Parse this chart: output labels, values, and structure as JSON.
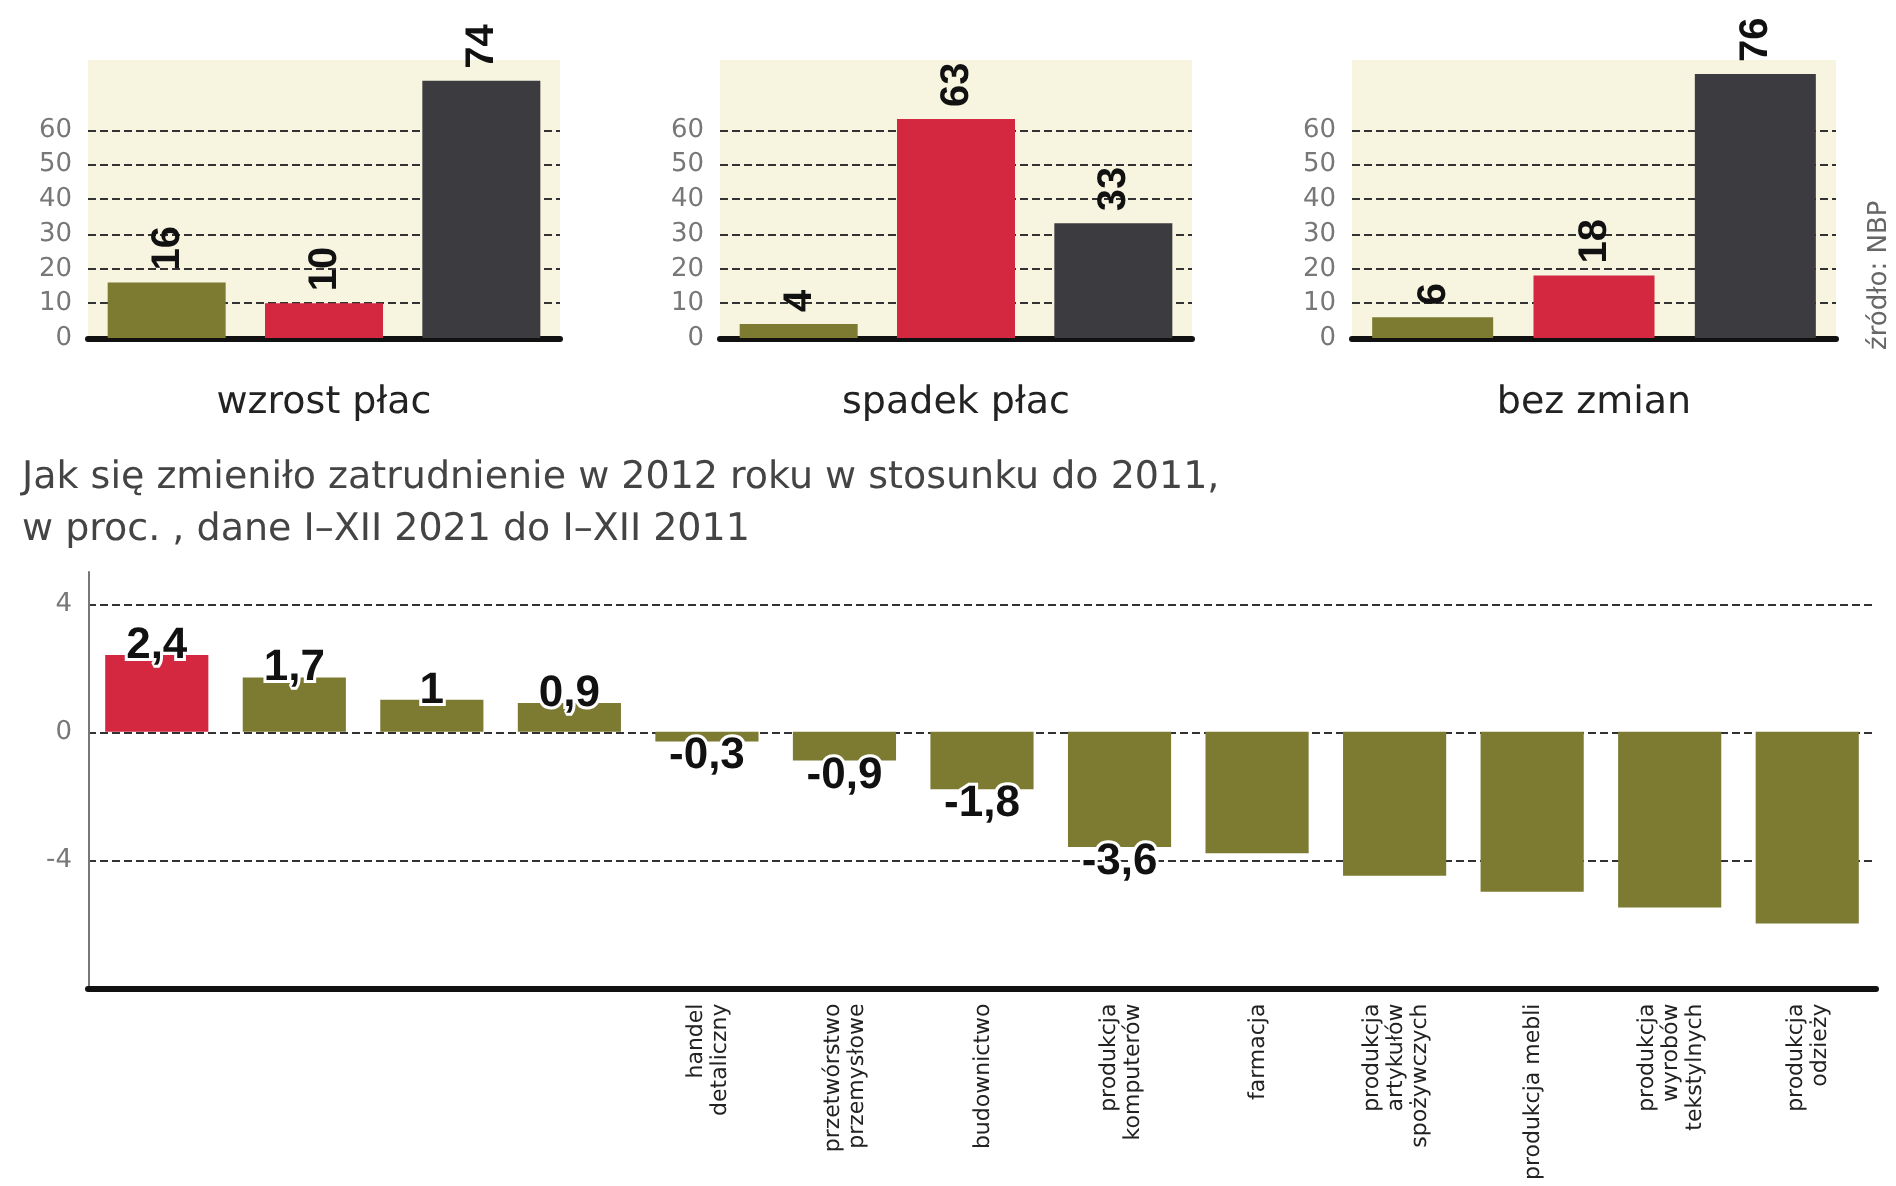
{
  "chart_data": [
    {
      "type": "bar",
      "xlabel": "wzrost płac",
      "categories": [
        null,
        null,
        null
      ],
      "values": [
        16,
        10,
        74
      ],
      "colors": [
        "#7d7b32",
        "#d3283f",
        "#3b3b40"
      ],
      "ylim": [
        0,
        80
      ],
      "yticks": [
        0,
        10,
        20,
        30,
        40,
        50,
        60
      ],
      "grid": "y",
      "data_labels": true
    },
    {
      "type": "bar",
      "xlabel": "spadek płac",
      "categories": [
        null,
        null,
        null
      ],
      "values": [
        4,
        63,
        33
      ],
      "colors": [
        "#7d7b32",
        "#d3283f",
        "#3b3b40"
      ],
      "ylim": [
        0,
        80
      ],
      "yticks": [
        0,
        10,
        20,
        30,
        40,
        50,
        60
      ],
      "grid": "y",
      "data_labels": true
    },
    {
      "type": "bar",
      "xlabel": "bez zmian",
      "categories": [
        null,
        null,
        null
      ],
      "values": [
        6,
        18,
        76
      ],
      "colors": [
        "#7d7b32",
        "#d3283f",
        "#3b3b40"
      ],
      "ylim": [
        0,
        80
      ],
      "yticks": [
        0,
        10,
        20,
        30,
        40,
        50,
        60
      ],
      "grid": "y",
      "data_labels": true,
      "annotations": [
        "źródło: NBP"
      ]
    },
    {
      "type": "bar",
      "title": "Jak się zmieniło zatrudnienie w 2012 roku w stosunku do 2011,\nw proc. , dane I–XII 2021 do I–XII 2011",
      "categories": [
        null,
        null,
        null,
        null,
        "handel\ndetaliczny",
        "przetwórstwo\nprzemysłowe",
        "budownictwo",
        "produkcja\nkomputerów",
        "farmacja",
        "produkcja\nartykułów\nspożywczych",
        "produkcja mebli",
        "produkcja\nwyrobów\ntekstylnych",
        "produkcja\nodzieży"
      ],
      "values": [
        2.4,
        1.7,
        1,
        0.9,
        -0.3,
        -0.9,
        -1.8,
        -3.6,
        -3.8,
        -4.5,
        -5,
        -5.5,
        -6
      ],
      "value_labels": [
        "2,4",
        "1,7",
        "1",
        "0,9",
        "-0,3",
        "-0,9",
        "-1,8",
        "-3,6",
        null,
        null,
        null,
        null,
        null
      ],
      "colors": [
        "#d3283f",
        "#7d7b32",
        "#7d7b32",
        "#7d7b32",
        "#7d7b32",
        "#7d7b32",
        "#7d7b32",
        "#7d7b32",
        "#7d7b32",
        "#7d7b32",
        "#7d7b32",
        "#7d7b32",
        "#7d7b32"
      ],
      "ylim": [
        -8,
        5
      ],
      "yticks": [
        -4,
        0,
        4
      ],
      "grid": "y"
    }
  ]
}
